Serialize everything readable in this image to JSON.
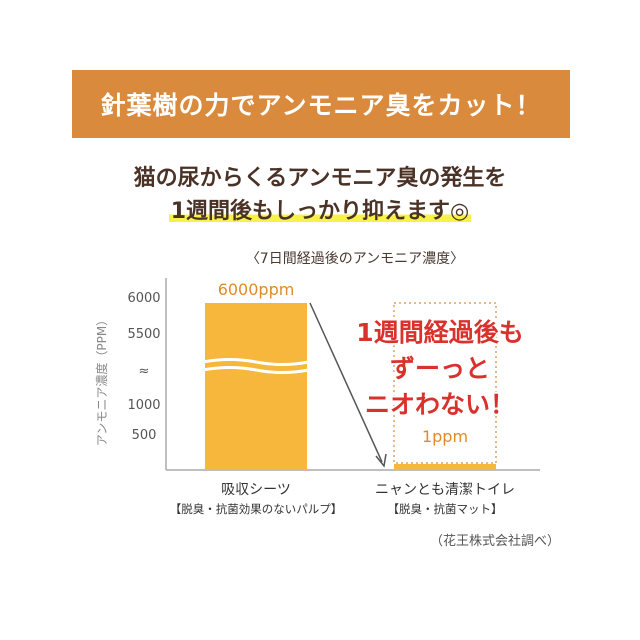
{
  "banner": {
    "title": "針葉樹の力でアンモニア臭をカット！"
  },
  "headline": {
    "line1": "猫の尿からくるアンモニア臭の発生を",
    "line2": "1週間後もしっかり抑えます◎"
  },
  "chart_data": {
    "type": "bar",
    "title": "〈7日間経過後のアンモニア濃度〉",
    "ylabel": "アンモニア濃度（PPM）",
    "yticks": [
      "6000",
      "5500",
      "≈",
      "1000",
      "500"
    ],
    "categories": [
      "吸収シーツ",
      "ニャンとも清潔トイレ"
    ],
    "category_notes": [
      "【脱臭・抗菌効果のないパルプ】",
      "【脱臭・抗菌マット】"
    ],
    "values": [
      6000,
      1
    ],
    "value_labels": [
      "6000ppm",
      "1ppm"
    ],
    "axis_break": true,
    "annotation": [
      "1週間経過後も",
      "ずーっと",
      "ニオわない！"
    ],
    "colors": {
      "bar": "#f6b73c",
      "label": "#e08a2a",
      "annotation": "#d9312b",
      "dotted": "#e0a060"
    }
  },
  "source_note": "（花王株式会社調べ）"
}
